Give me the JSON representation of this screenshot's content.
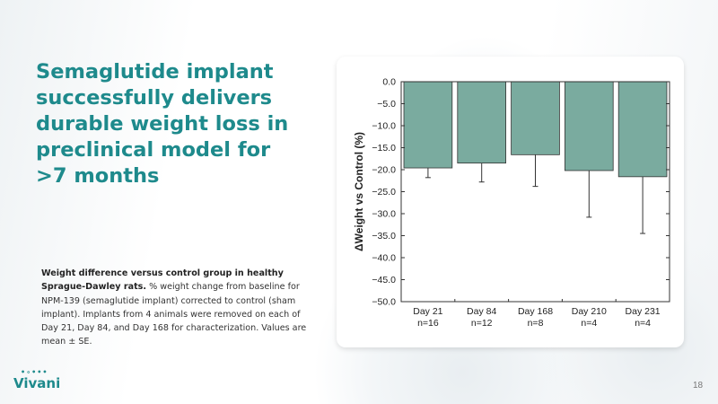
{
  "slide": {
    "title": "Semaglutide implant successfully delivers durable weight loss in preclinical model for >7 months",
    "caption_bold": "Weight difference versus control group in healthy Sprague-Dawley rats.",
    "caption_text": " % weight change from baseline for NPM-139 (semaglutide implant) corrected to control (sham implant). Implants from 4 animals were removed on each of Day 21, Day 84, and Day 168 for characterization. Values are mean ± SE.",
    "logo": "Vivani",
    "page_number": "18"
  },
  "colors": {
    "accent": "#1e8a8c",
    "bar": "#7aab9f"
  },
  "chart_data": {
    "type": "bar",
    "categories": [
      "Day 21",
      "Day 84",
      "Day 168",
      "Day 210",
      "Day 231"
    ],
    "sublabels": [
      "n=16",
      "n=12",
      "n=8",
      "n=4",
      "n=4"
    ],
    "values": [
      -19.6,
      -18.5,
      -16.6,
      -20.2,
      -21.6
    ],
    "errors": [
      2.2,
      4.3,
      7.2,
      10.6,
      12.9
    ],
    "ylabel": "ΔWeight vs Control (%)",
    "ylim": [
      -50,
      0
    ],
    "yticks": [
      "0.0",
      "−5.0",
      "−10.0",
      "−15.0",
      "−20.0",
      "−25.0",
      "−30.0",
      "−35.0",
      "−40.0",
      "−45.0",
      "−50.0"
    ],
    "grid": false
  }
}
